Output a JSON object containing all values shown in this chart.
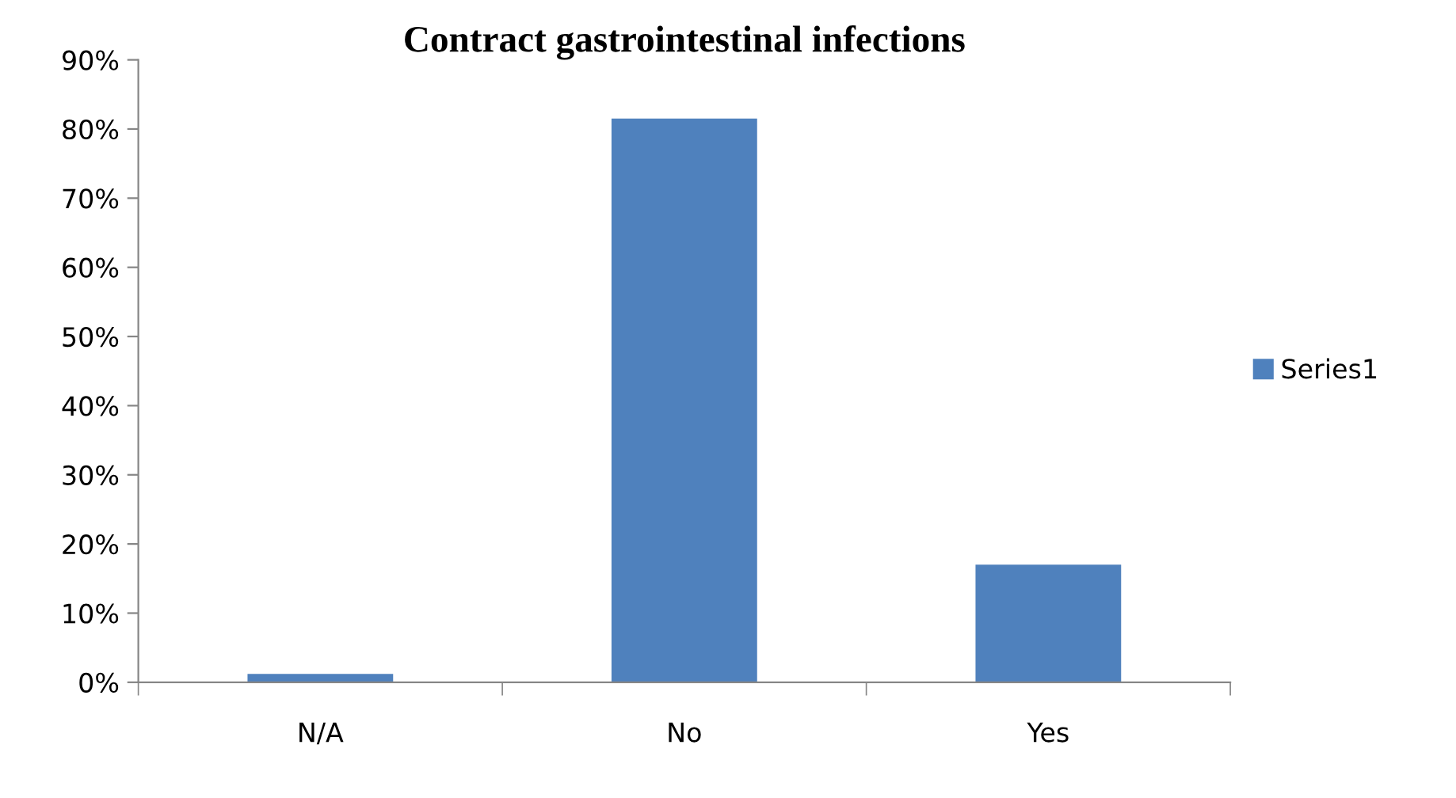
{
  "chart_data": {
    "type": "bar",
    "title": "Contract gastrointestinal infections",
    "categories": [
      "N/A",
      "No",
      "Yes"
    ],
    "series": [
      {
        "name": "Series1",
        "color": "#4f81bd",
        "values": [
          1.2,
          81.5,
          17.0
        ]
      }
    ],
    "ylim": [
      0,
      90
    ],
    "yticks": [
      {
        "value": 0,
        "label": "0%"
      },
      {
        "value": 10,
        "label": "10%"
      },
      {
        "value": 20,
        "label": "20%"
      },
      {
        "value": 30,
        "label": "30%"
      },
      {
        "value": 40,
        "label": "40%"
      },
      {
        "value": 50,
        "label": "50%"
      },
      {
        "value": 60,
        "label": "60%"
      },
      {
        "value": 70,
        "label": "70%"
      },
      {
        "value": 80,
        "label": "80%"
      },
      {
        "value": 90,
        "label": "90%"
      }
    ],
    "legend": "right",
    "grid": false
  }
}
